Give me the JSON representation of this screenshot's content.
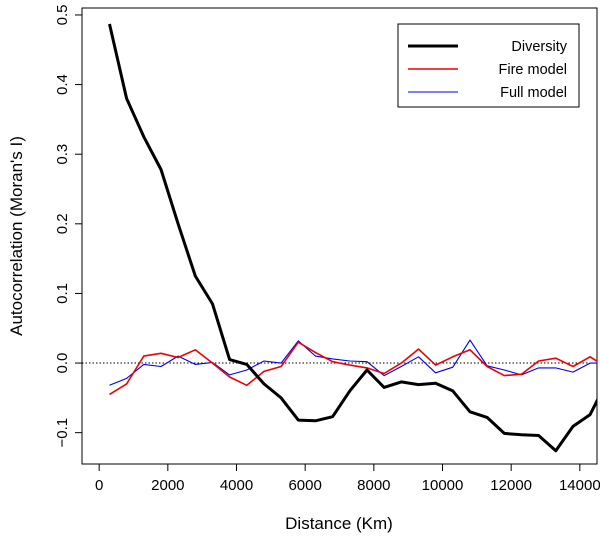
{
  "chart_data": {
    "type": "line",
    "xlabel": "Distance (Km)",
    "ylabel": "Autocorrelation (Moran's I)",
    "xlim": [
      -500,
      14500
    ],
    "ylim": [
      -0.145,
      0.51
    ],
    "xticks": [
      0,
      2000,
      4000,
      6000,
      8000,
      10000,
      12000,
      14000
    ],
    "xtick_labels": [
      "0",
      "2000",
      "4000",
      "6000",
      "8000",
      "10000",
      "12000",
      "14000"
    ],
    "yticks": [
      -0.1,
      0.0,
      0.1,
      0.2,
      0.3,
      0.4,
      0.5
    ],
    "ytick_labels": [
      "−0.1",
      "0.0",
      "0.1",
      "0.2",
      "0.3",
      "0.4",
      "0.5"
    ],
    "reference_line": 0.0,
    "grid": false,
    "legend": {
      "position": "top-right",
      "entries": [
        "Diversity",
        "Fire model",
        "Full model"
      ]
    },
    "x": [
      300,
      800,
      1300,
      1800,
      2300,
      2800,
      3300,
      3800,
      4300,
      4800,
      5300,
      5800,
      6300,
      6800,
      7300,
      7800,
      8300,
      8800,
      9300,
      9800,
      10300,
      10800,
      11300,
      11800,
      12300,
      12800,
      13300,
      13800,
      14300,
      14800
    ],
    "series": [
      {
        "name": "Diversity",
        "color": "#000000",
        "width": 3,
        "values": [
          0.487,
          0.38,
          0.325,
          0.278,
          0.2,
          0.125,
          0.085,
          0.005,
          -0.002,
          -0.03,
          -0.05,
          -0.082,
          -0.083,
          -0.077,
          -0.04,
          -0.01,
          -0.035,
          -0.027,
          -0.031,
          -0.029,
          -0.04,
          -0.07,
          -0.078,
          -0.101,
          -0.103,
          -0.104,
          -0.126,
          -0.091,
          -0.074,
          -0.025
        ]
      },
      {
        "name": "Fire model",
        "color": "#ee0000",
        "width": 1.6,
        "values": [
          -0.045,
          -0.03,
          0.01,
          0.014,
          0.008,
          0.019,
          0.0,
          -0.02,
          -0.032,
          -0.012,
          -0.005,
          0.03,
          0.015,
          0.002,
          -0.003,
          -0.007,
          -0.015,
          0.0,
          0.02,
          -0.003,
          0.009,
          0.019,
          -0.005,
          -0.018,
          -0.016,
          0.003,
          0.007,
          -0.005,
          0.009,
          -0.007
        ]
      },
      {
        "name": "Full model",
        "color": "#0000ee",
        "width": 1.1,
        "values": [
          -0.032,
          -0.022,
          -0.002,
          -0.005,
          0.01,
          -0.002,
          0.001,
          -0.017,
          -0.01,
          0.003,
          0.0,
          0.032,
          0.01,
          0.006,
          0.003,
          0.002,
          -0.018,
          -0.005,
          0.009,
          -0.014,
          -0.006,
          0.033,
          -0.004,
          -0.01,
          -0.017,
          -0.007,
          -0.007,
          -0.013,
          0.0,
          0.0
        ]
      }
    ]
  }
}
